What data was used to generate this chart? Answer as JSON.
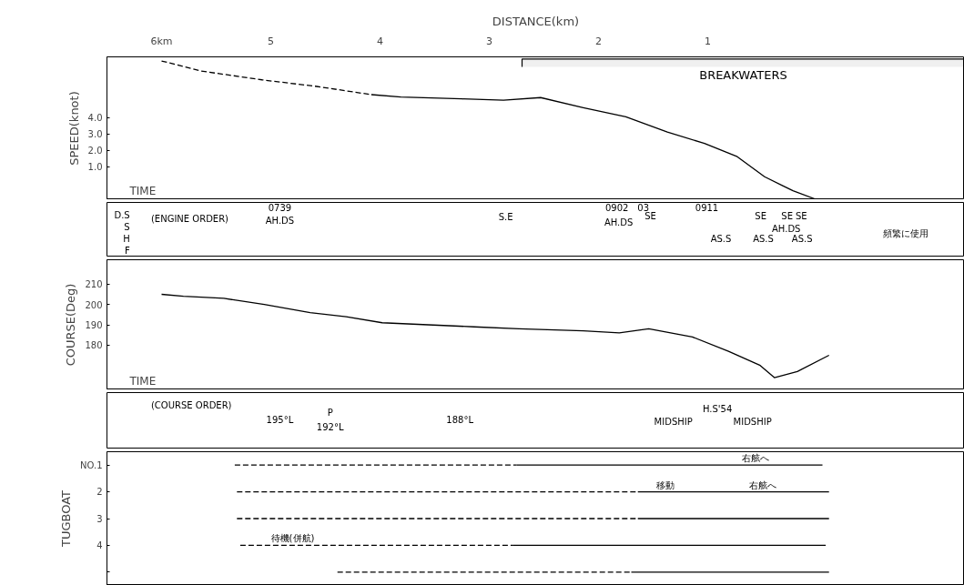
{
  "chart_data": [
    {
      "type": "line",
      "xlabel": "DISTANCE(km)",
      "ylabel": "SPEED(knot)",
      "xlim": [
        6.5,
        -1.35
      ],
      "xticks": [
        {
          "value": 6,
          "label": "6km"
        },
        5,
        4,
        3,
        2,
        1
      ],
      "ylim": [
        -1.0,
        7.7
      ],
      "yticks": [
        {
          "value": 1,
          "label": "1.0"
        },
        {
          "value": 2,
          "label": "2.0"
        },
        {
          "value": 3,
          "label": "3.0"
        },
        {
          "value": 4,
          "label": "4.0"
        }
      ],
      "grid": false,
      "series": [
        {
          "color": "#000000",
          "line_style": "dashed",
          "x": [
            6.0,
            5.64,
            5.08,
            4.58,
            4.08
          ],
          "values": [
            7.45,
            6.84,
            6.3,
            5.9,
            5.4
          ]
        },
        {
          "color": "#000000",
          "line_style": "solid",
          "x": [
            4.08,
            3.81,
            3.25,
            2.87,
            2.53,
            2.14,
            1.75,
            1.37,
            1.03,
            0.73,
            0.48,
            0.31,
            0.22,
            0.0
          ],
          "values": [
            5.4,
            5.26,
            5.14,
            5.06,
            5.22,
            4.61,
            4.05,
            3.12,
            2.43,
            1.62,
            0.4,
            -0.16,
            -0.45,
            -1.0
          ]
        }
      ],
      "bands": [
        {
          "axis": "x",
          "from": 2.7,
          "to": -1.35,
          "label": "BREAKWATERS",
          "color": "#000000"
        }
      ],
      "annotations": [
        "TIME"
      ]
    },
    {
      "type": "other",
      "annotations": [
        "(ENGINE ORDER)",
        "D.S",
        "S",
        "H",
        "F",
        "0739",
        "AH.DS",
        "S.E",
        "0902",
        "AH.DS",
        "03",
        "SE",
        "0911",
        "AS.S",
        "SE",
        "AS.S",
        "SE",
        "AH.DS",
        "SE",
        "AS.S",
        "頻繁に使用"
      ]
    },
    {
      "type": "line",
      "ylabel": "COURSE(Deg)",
      "xlim": [
        6.5,
        -1.35
      ],
      "ylim": [
        158,
        222
      ],
      "yticks": [
        180,
        190,
        200,
        210
      ],
      "tick_labels": "y",
      "grid": false,
      "series": [
        {
          "color": "#000000",
          "line_style": "solid",
          "x": [
            6.0,
            5.8,
            5.43,
            5.06,
            4.64,
            4.31,
            3.98,
            3.56,
            3.14,
            2.73,
            2.14,
            1.81,
            1.54,
            1.14,
            0.81,
            0.52,
            0.39,
            0.18,
            -0.11
          ],
          "values": [
            205,
            204,
            203,
            200,
            196,
            194,
            191,
            190,
            189,
            188,
            187,
            186,
            188,
            184,
            177,
            170,
            164,
            167,
            175
          ]
        }
      ],
      "annotations": [
        "TIME"
      ]
    },
    {
      "type": "other",
      "annotations": [
        "(COURSE ORDER)",
        "195°L",
        "P",
        "192°L",
        "188°L",
        "MIDSHIP",
        "H.S'54",
        "MIDSHIP"
      ]
    },
    {
      "type": "line",
      "ylabel": "TUGBOAT",
      "xlim": [
        6.5,
        -1.35
      ],
      "ylim": [
        5.5,
        0.5
      ],
      "yticks": [
        {
          "value": 1,
          "label": "NO.1"
        },
        2,
        3,
        4,
        {
          "value": 5,
          "label": null
        }
      ],
      "tick_labels": "y",
      "grid": false,
      "series": [
        {
          "color": "#000000",
          "line_style": "dashed",
          "x": [
            5.33,
            2.75
          ],
          "values": [
            1,
            1
          ]
        },
        {
          "color": "#000000",
          "line_style": "solid",
          "x": [
            2.75,
            -0.05
          ],
          "values": [
            1,
            1
          ]
        },
        {
          "color": "#000000",
          "line_style": "dashed",
          "x": [
            5.31,
            1.64
          ],
          "values": [
            2,
            2
          ]
        },
        {
          "color": "#000000",
          "line_style": "solid",
          "x": [
            1.64,
            -0.11
          ],
          "values": [
            2,
            2
          ]
        },
        {
          "color": "#000000",
          "line_style": "dashed",
          "x": [
            5.31,
            1.64
          ],
          "values": [
            3,
            3
          ]
        },
        {
          "color": "#000000",
          "line_style": "solid",
          "x": [
            1.64,
            -0.11
          ],
          "values": [
            3,
            3
          ]
        },
        {
          "color": "#000000",
          "line_style": "dashed",
          "x": [
            5.28,
            2.78
          ],
          "values": [
            4,
            4
          ]
        },
        {
          "color": "#000000",
          "line_style": "solid",
          "x": [
            2.78,
            -0.08
          ],
          "values": [
            4,
            4
          ]
        },
        {
          "color": "#000000",
          "line_style": "dashed",
          "x": [
            4.39,
            1.7
          ],
          "values": [
            5,
            5
          ]
        },
        {
          "color": "#000000",
          "line_style": "solid",
          "x": [
            1.7,
            -0.11
          ],
          "values": [
            5,
            5
          ]
        }
      ],
      "annotations": [
        {
          "text": "右舷へ",
          "x": 0.56,
          "y": 1
        },
        {
          "text": "移動",
          "x": 1.39,
          "y": 2
        },
        {
          "text": "右舷へ",
          "x": 0.5,
          "y": 2
        },
        {
          "text": "待機(併航)",
          "x": 4.8,
          "y": 4
        }
      ]
    }
  ]
}
